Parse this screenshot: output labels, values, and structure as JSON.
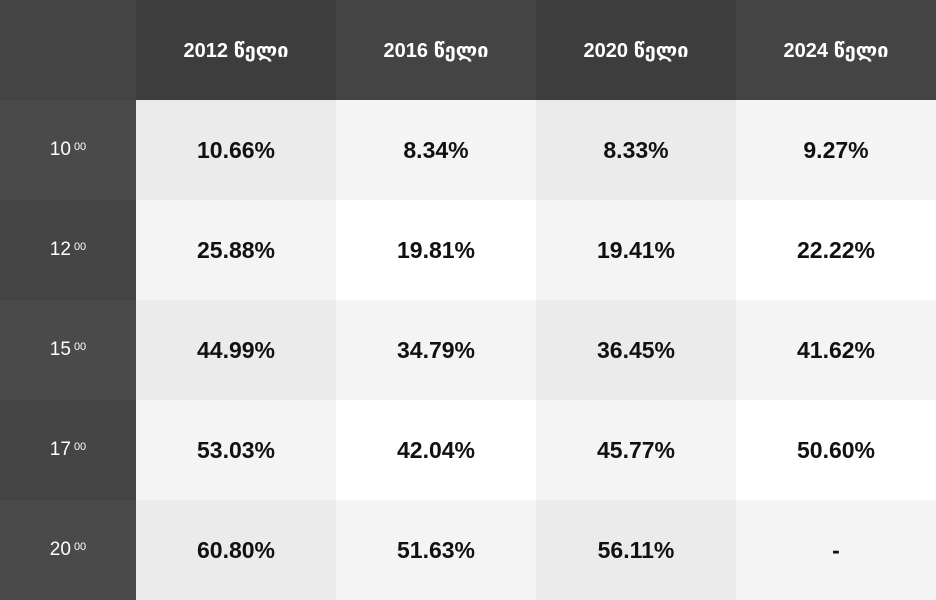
{
  "chart_data": {
    "type": "table",
    "columns": [
      "2012 წელი",
      "2016 წელი",
      "2020 წელი",
      "2024 წელი"
    ],
    "rows": [
      {
        "label": "10",
        "sup": "00",
        "values": [
          "10.66%",
          "8.34%",
          "8.33%",
          "9.27%"
        ]
      },
      {
        "label": "12",
        "sup": "00",
        "values": [
          "25.88%",
          "19.81%",
          "19.41%",
          "22.22%"
        ]
      },
      {
        "label": "15",
        "sup": "00",
        "values": [
          "44.99%",
          "34.79%",
          "36.45%",
          "41.62%"
        ]
      },
      {
        "label": "17",
        "sup": "00",
        "values": [
          "53.03%",
          "42.04%",
          "45.77%",
          "50.60%"
        ]
      },
      {
        "label": "20",
        "sup": "00",
        "values": [
          "60.80%",
          "51.63%",
          "56.11%",
          "-"
        ]
      }
    ],
    "series": [
      {
        "name": "2012 წელი",
        "values": [
          10.66,
          25.88,
          44.99,
          53.03,
          60.8
        ]
      },
      {
        "name": "2016 წელი",
        "values": [
          8.34,
          19.81,
          34.79,
          42.04,
          51.63
        ]
      },
      {
        "name": "2020 წელი",
        "values": [
          8.33,
          19.41,
          36.45,
          45.77,
          56.11
        ]
      },
      {
        "name": "2024 წელი",
        "values": [
          9.27,
          22.22,
          41.62,
          50.6,
          null
        ]
      }
    ]
  },
  "colors": {
    "header_bg": "#3d3d3d",
    "header_bg_alt": "#444444",
    "row_label_bg": "#4a4a4a",
    "row_label_bg_alt": "#444444",
    "cell_shade_a": "#ebebeb",
    "cell_shade_b": "#f4f4f4",
    "cell_shade_c": "#ffffff"
  }
}
